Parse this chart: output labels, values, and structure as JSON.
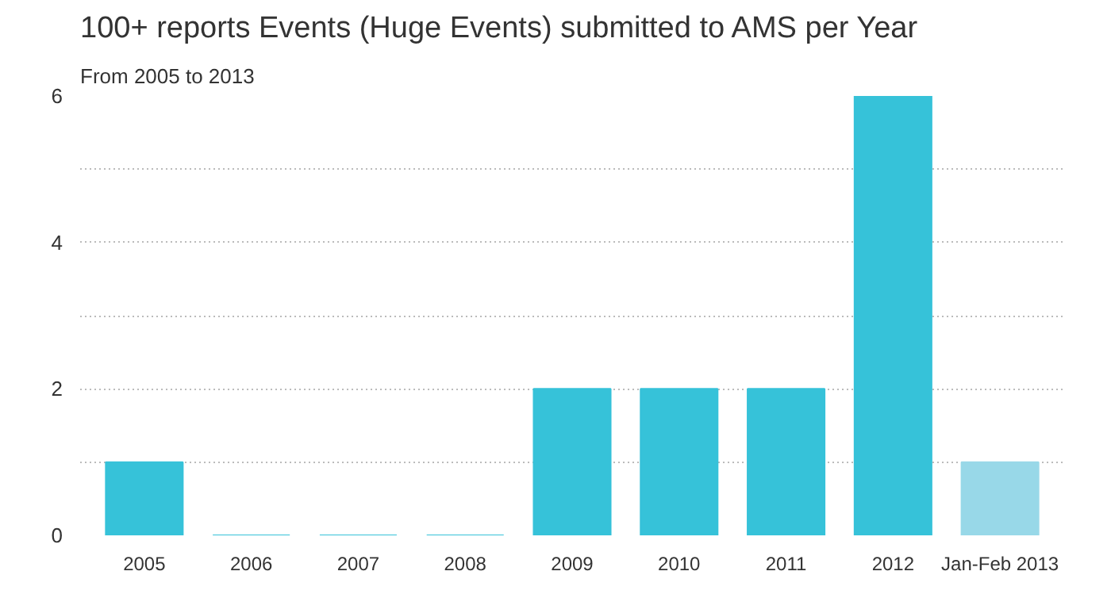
{
  "chart_data": {
    "type": "bar",
    "title": "100+ reports Events (Huge Events) submitted to AMS per Year",
    "subtitle": "From 2005 to 2013",
    "categories": [
      "2005",
      "2006",
      "2007",
      "2008",
      "2009",
      "2010",
      "2011",
      "2012",
      "Jan-Feb 2013"
    ],
    "values": [
      1,
      0,
      0,
      0,
      2,
      2,
      2,
      6,
      1
    ],
    "colors": [
      "#36c2d9",
      "#36c2d9",
      "#36c2d9",
      "#36c2d9",
      "#36c2d9",
      "#36c2d9",
      "#36c2d9",
      "#36c2d9",
      "#98d8e8"
    ],
    "ylim": [
      0,
      6
    ],
    "yticks": [
      0,
      {
        "value": 1,
        "label": null
      },
      2,
      {
        "value": 3,
        "label": null
      },
      4,
      {
        "value": 5,
        "label": null
      },
      6
    ],
    "grid": "y"
  }
}
